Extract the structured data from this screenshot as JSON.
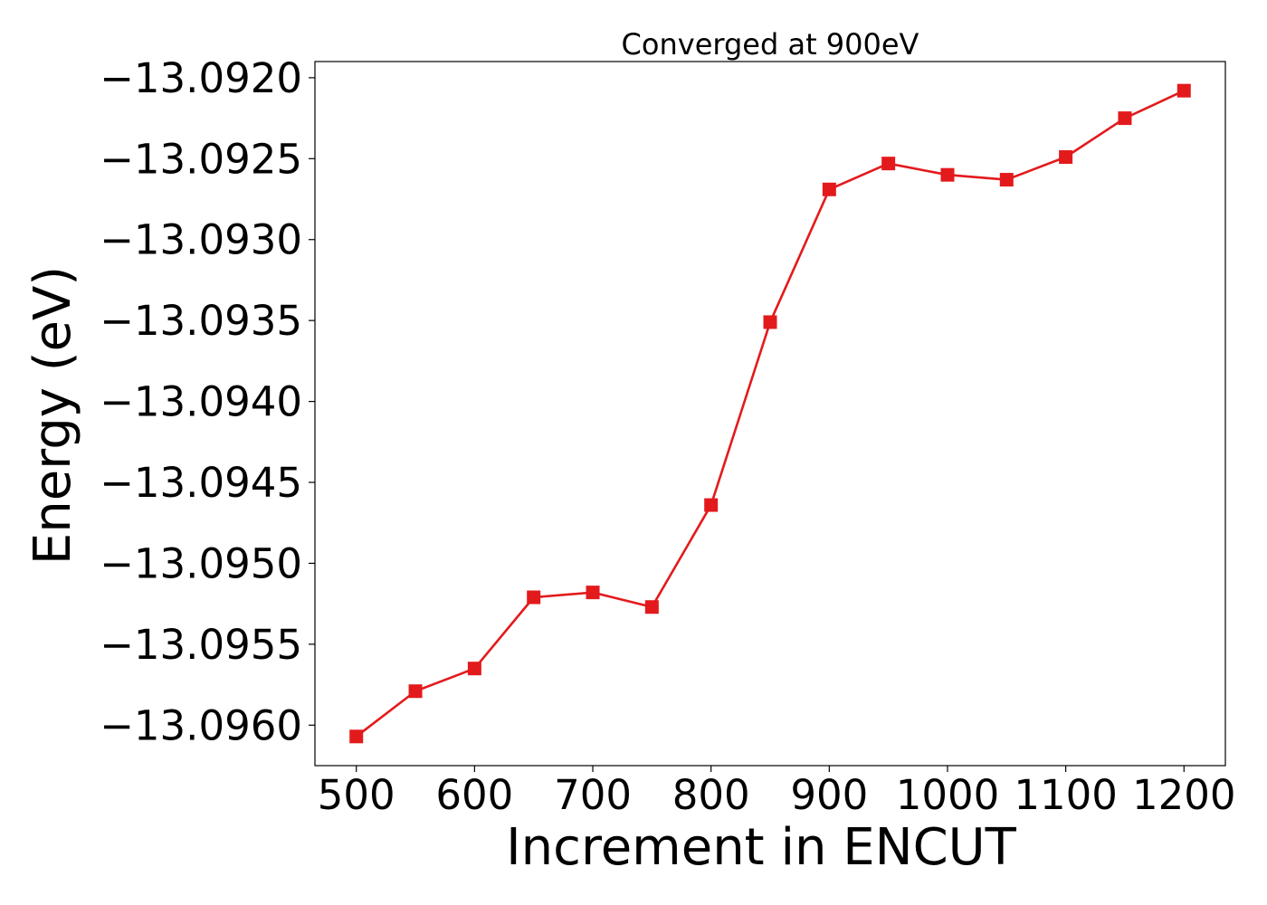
{
  "chart_data": {
    "type": "line",
    "title": "Converged at 900eV",
    "xlabel": "Increment in ENCUT",
    "ylabel": "Energy (eV)",
    "xlim": [
      465,
      1235
    ],
    "ylim": [
      -13.09625,
      -13.0919
    ],
    "x_ticks": [
      500,
      600,
      700,
      800,
      900,
      1000,
      1100,
      1200
    ],
    "x_tick_labels": [
      "500",
      "600",
      "700",
      "800",
      "900",
      "1000",
      "1100",
      "1200"
    ],
    "y_ticks": [
      -13.092,
      -13.0925,
      -13.093,
      -13.0935,
      -13.094,
      -13.0945,
      -13.095,
      -13.0955,
      -13.096
    ],
    "y_tick_labels": [
      "−13.0920",
      "−13.0925",
      "−13.0930",
      "−13.0935",
      "−13.0940",
      "−13.0945",
      "−13.0950",
      "−13.0955",
      "−13.0960"
    ],
    "grid": false,
    "series": [
      {
        "color": "#e31a1c",
        "marker": "square",
        "x": [
          500,
          550,
          600,
          650,
          700,
          750,
          800,
          850,
          900,
          950,
          1000,
          1050,
          1100,
          1150,
          1200
        ],
        "y": [
          -13.09607,
          -13.09579,
          -13.09565,
          -13.09521,
          -13.09518,
          -13.09527,
          -13.09464,
          -13.09351,
          -13.09269,
          -13.09253,
          -13.0926,
          -13.09263,
          -13.09249,
          -13.09225,
          -13.09208
        ]
      }
    ]
  }
}
